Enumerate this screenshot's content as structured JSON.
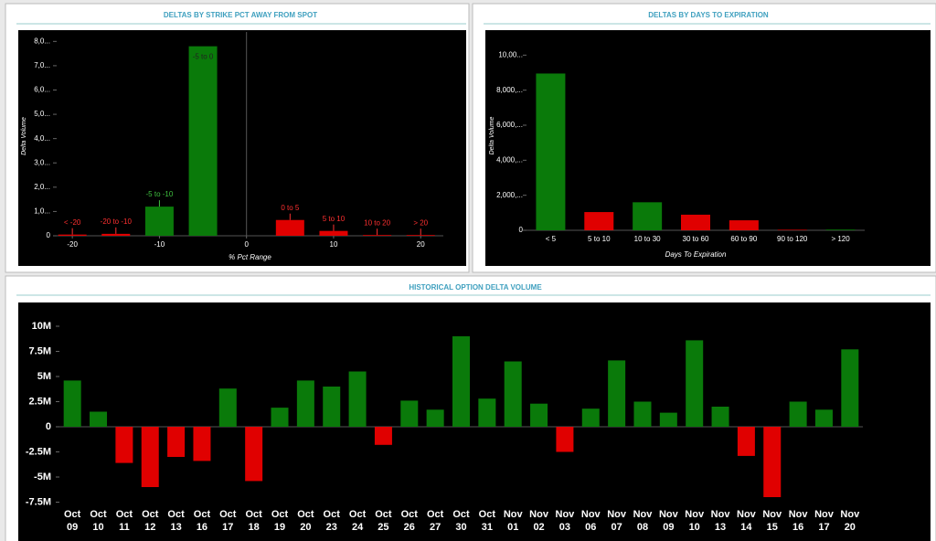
{
  "chart_data": [
    {
      "type": "bar",
      "title": "DELTAS BY STRIKE PCT AWAY FROM SPOT",
      "x_label": "% Pct Range",
      "y_label": "Delta Volume",
      "categories": [
        "< -20",
        "-20 to -10",
        "-5 to -10",
        "-5 to 0",
        "0 to 5",
        "5 to 10",
        "10 to 20",
        "> 20"
      ],
      "x": [
        -20,
        -15,
        -10,
        -5,
        5,
        10,
        15,
        20
      ],
      "values": [
        50,
        80,
        1200,
        7800,
        650,
        200,
        30,
        30
      ],
      "colors": [
        "#e00000",
        "#e00000",
        "#0a7a0a",
        "#0a7a0a",
        "#e00000",
        "#e00000",
        "#e00000",
        "#e00000"
      ],
      "xlim": [
        -21.8,
        22.6
      ],
      "xticks": [
        -20,
        -10,
        0,
        10,
        20
      ],
      "ylim": [
        0,
        8200
      ],
      "yticks": [
        0,
        {
          "value": 1000,
          "label": "1,0..."
        },
        {
          "value": 2000,
          "label": "2,0..."
        },
        {
          "value": 3000,
          "label": "3,0..."
        },
        {
          "value": 4000,
          "label": "4,0..."
        },
        {
          "value": 5000,
          "label": "5,0..."
        },
        {
          "value": 6000,
          "label": "6,0..."
        },
        {
          "value": 7000,
          "label": "7,0..."
        },
        {
          "value": 8000,
          "label": "8,0..."
        }
      ]
    },
    {
      "type": "bar",
      "title": "DELTAS BY DAYS TO EXPIRATION",
      "x_label": "Days To Expiration",
      "y_label": "Delta Volume",
      "categories": [
        "< 5",
        "5 to 10",
        "10 to 30",
        "30 to 60",
        "60 to 90",
        "90 to 120",
        "> 120"
      ],
      "values": [
        8950,
        1040,
        1600,
        890,
        570,
        30,
        40
      ],
      "colors": [
        "#0a7a0a",
        "#e00000",
        "#0a7a0a",
        "#e00000",
        "#e00000",
        "#e00000",
        "#0a7a0a"
      ],
      "ylim": [
        0,
        10800
      ],
      "yticks": [
        0,
        {
          "value": 2000,
          "label": "2,000,..."
        },
        {
          "value": 4000,
          "label": "4,000,..."
        },
        {
          "value": 6000,
          "label": "6,000,..."
        },
        {
          "value": 8000,
          "label": "8,000,..."
        },
        {
          "value": 10000,
          "label": "10,00..."
        }
      ]
    },
    {
      "type": "signed_bar",
      "title": "HISTORICAL OPTION DELTA VOLUME",
      "categories": [
        [
          "Oct",
          "09"
        ],
        [
          "Oct",
          "10"
        ],
        [
          "Oct",
          "11"
        ],
        [
          "Oct",
          "12"
        ],
        [
          "Oct",
          "13"
        ],
        [
          "Oct",
          "16"
        ],
        [
          "Oct",
          "17"
        ],
        [
          "Oct",
          "18"
        ],
        [
          "Oct",
          "19"
        ],
        [
          "Oct",
          "20"
        ],
        [
          "Oct",
          "23"
        ],
        [
          "Oct",
          "24"
        ],
        [
          "Oct",
          "25"
        ],
        [
          "Oct",
          "26"
        ],
        [
          "Oct",
          "27"
        ],
        [
          "Oct",
          "30"
        ],
        [
          "Oct",
          "31"
        ],
        [
          "Nov",
          "01"
        ],
        [
          "Nov",
          "02"
        ],
        [
          "Nov",
          "03"
        ],
        [
          "Nov",
          "06"
        ],
        [
          "Nov",
          "07"
        ],
        [
          "Nov",
          "08"
        ],
        [
          "Nov",
          "09"
        ],
        [
          "Nov",
          "10"
        ],
        [
          "Nov",
          "13"
        ],
        [
          "Nov",
          "14"
        ],
        [
          "Nov",
          "15"
        ],
        [
          "Nov",
          "16"
        ],
        [
          "Nov",
          "17"
        ],
        [
          "Nov",
          "20"
        ]
      ],
      "values": [
        4600000,
        1500000,
        -3600000,
        -6000000,
        -3000000,
        -3400000,
        3800000,
        -5400000,
        1900000,
        4600000,
        4000000,
        5500000,
        -1800000,
        2600000,
        1700000,
        9000000,
        2800000,
        6500000,
        2300000,
        -2500000,
        1800000,
        6600000,
        2500000,
        1400000,
        8600000,
        2000000,
        -2900000,
        -7000000,
        2500000,
        1700000,
        7700000
      ],
      "positive_color": "#0a7a0a",
      "negative_color": "#e00000",
      "ylim": [
        -8000000,
        12000000
      ],
      "yticks": [
        {
          "value": 10000000,
          "label": "10M"
        },
        {
          "value": 7500000,
          "label": "7.5M"
        },
        {
          "value": 5000000,
          "label": "5M"
        },
        {
          "value": 2500000,
          "label": "2.5M"
        },
        0,
        {
          "value": -2500000,
          "label": "-2.5M"
        },
        {
          "value": -5000000,
          "label": "-5M"
        },
        {
          "value": -7500000,
          "label": "-7.5M"
        }
      ]
    }
  ]
}
